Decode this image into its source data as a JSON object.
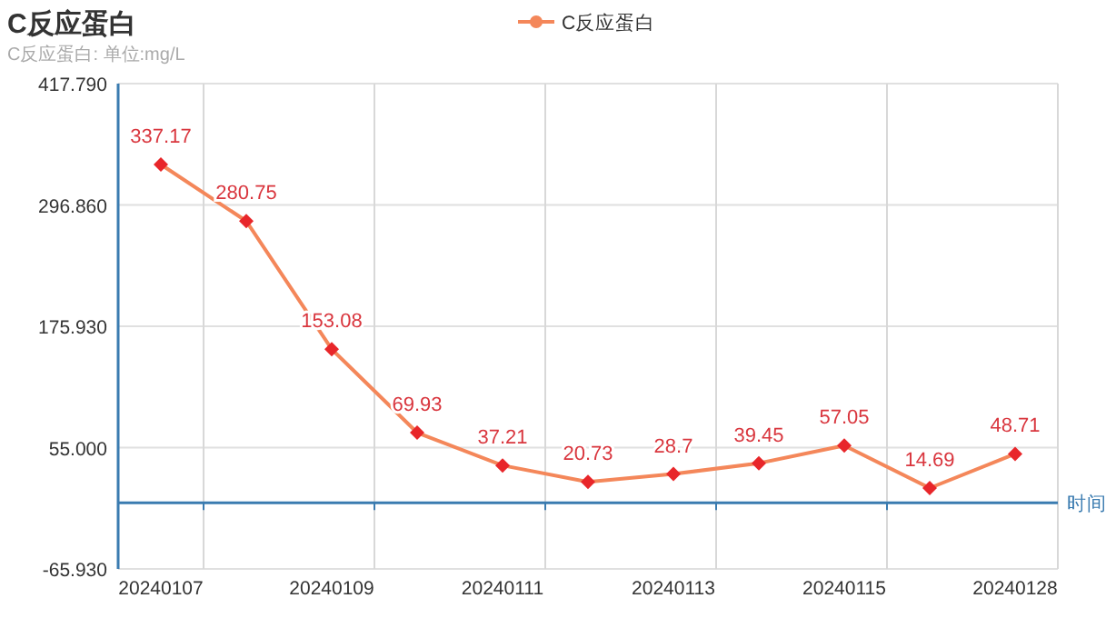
{
  "chart_data": {
    "type": "line",
    "title": "C反应蛋白",
    "subtitle": "C反应蛋白: 单位:mg/L",
    "xlabel": "时间",
    "categories": [
      "20240107",
      null,
      "20240109",
      null,
      "20240111",
      null,
      "20240113",
      null,
      "20240115",
      null,
      "20240128"
    ],
    "series": [
      {
        "name": "C反应蛋白",
        "color": "#f4875a",
        "colors": [
          "#e8262a",
          "#e8262a",
          "#e8262a",
          "#e8262a",
          "#e8262a",
          "#e8262a",
          "#e8262a",
          "#e8262a",
          "#e8262a",
          "#e8262a",
          "#e8262a"
        ],
        "values": [
          337.17,
          280.75,
          153.08,
          69.93,
          37.21,
          20.73,
          28.7,
          39.45,
          57.05,
          14.69,
          48.71
        ]
      }
    ],
    "ylim": [
      -65.93,
      417.79
    ],
    "yticks": [
      {
        "value": -65.93,
        "label": "-65.930"
      },
      {
        "value": 55,
        "label": "55.000"
      },
      {
        "value": 175.93,
        "label": "175.930"
      },
      {
        "value": 296.86,
        "label": "296.860"
      },
      {
        "value": 417.79,
        "label": "417.790"
      }
    ],
    "ref_lines": [
      {
        "axis": "y",
        "value": 0,
        "color": "#3a7bb0",
        "line_style": "solid"
      }
    ],
    "grid": true,
    "legend": "top",
    "marker": "diamond",
    "data_labels": true
  }
}
